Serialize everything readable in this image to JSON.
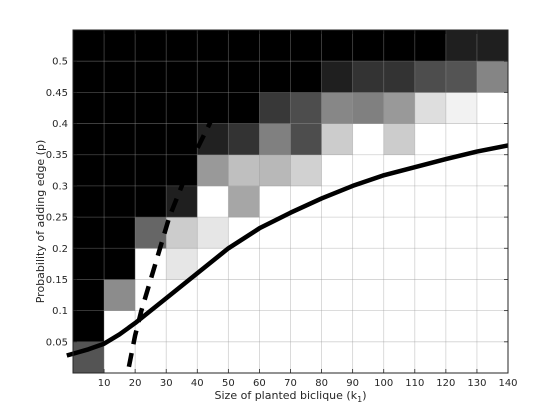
{
  "chart_data": {
    "type": "heatmap",
    "title": "",
    "xlabel": "Size of planted biclique (k",
    "xlabel_subscript": "1",
    "xlabel_suffix": ")",
    "ylabel": "Probability of adding edge (p)",
    "xlim": [
      0,
      140
    ],
    "ylim": [
      0,
      0.55
    ],
    "x_ticks": [
      10,
      20,
      30,
      40,
      50,
      60,
      70,
      80,
      90,
      100,
      110,
      120,
      130,
      140
    ],
    "x_tick_labels": [
      "10",
      "20",
      "30",
      "40",
      "50",
      "60",
      "70",
      "80",
      "90",
      "100",
      "110",
      "120",
      "130",
      "140"
    ],
    "y_ticks": [
      0.05,
      0.1,
      0.15,
      0.2,
      0.25,
      0.3,
      0.35,
      0.4,
      0.45,
      0.5
    ],
    "y_tick_labels": [
      "0.05",
      "0.1",
      "0.15",
      "0.2",
      "0.25",
      "0.3",
      "0.35",
      "0.4",
      "0.45",
      "0.5"
    ],
    "grid": true,
    "colormap": "gray (0 = black, 1 = white)",
    "x_cells": [
      5,
      15,
      25,
      35,
      45,
      55,
      65,
      75,
      85,
      95,
      105,
      115,
      125,
      135
    ],
    "y_cells": [
      0.025,
      0.075,
      0.125,
      0.175,
      0.225,
      0.275,
      0.325,
      0.375,
      0.425,
      0.475,
      0.525
    ],
    "cell_values": [
      [
        0.33,
        1,
        1,
        1,
        1,
        1,
        1,
        1,
        1,
        1,
        1,
        1,
        1,
        1
      ],
      [
        0,
        1,
        1,
        1,
        1,
        1,
        1,
        1,
        1,
        1,
        1,
        1,
        1,
        1
      ],
      [
        0,
        0.55,
        1,
        1,
        1,
        1,
        1,
        1,
        1,
        1,
        1,
        1,
        1,
        1
      ],
      [
        0,
        0,
        1,
        0.9,
        1,
        1,
        1,
        1,
        1,
        1,
        1,
        1,
        1,
        1
      ],
      [
        0,
        0,
        0.4,
        0.8,
        0.9,
        1,
        1,
        1,
        1,
        1,
        1,
        1,
        1,
        1
      ],
      [
        0,
        0,
        0,
        0.12,
        1,
        0.65,
        1,
        1,
        1,
        1,
        1,
        1,
        1,
        1
      ],
      [
        0,
        0,
        0,
        0,
        0.6,
        0.75,
        0.72,
        0.82,
        1,
        1,
        1,
        1,
        1,
        1
      ],
      [
        0,
        0,
        0,
        0,
        0.13,
        0.2,
        0.5,
        0.3,
        0.8,
        1,
        0.8,
        1,
        1,
        1
      ],
      [
        0,
        0,
        0,
        0,
        0,
        0,
        0.22,
        0.3,
        0.53,
        0.5,
        0.6,
        0.87,
        0.95,
        1
      ],
      [
        0,
        0,
        0,
        0,
        0,
        0,
        0,
        0,
        0.12,
        0.2,
        0.2,
        0.3,
        0.33,
        0.52
      ],
      [
        0,
        0,
        0,
        0,
        0,
        0,
        0,
        0,
        0,
        0,
        0,
        0,
        0.12,
        0.12
      ]
    ],
    "series": [
      {
        "style": "solid",
        "x": [
          -2,
          5,
          10,
          15,
          20,
          25,
          30,
          40,
          50,
          60,
          70,
          80,
          90,
          100,
          110,
          120,
          130,
          140
        ],
        "y": [
          0.028,
          0.038,
          0.047,
          0.062,
          0.08,
          0.1,
          0.12,
          0.16,
          0.2,
          0.232,
          0.257,
          0.28,
          0.3,
          0.317,
          0.33,
          0.343,
          0.355,
          0.365
        ]
      },
      {
        "style": "dashed",
        "x": [
          18,
          20,
          22,
          25,
          28,
          31,
          35,
          40,
          46
        ],
        "y": [
          0.01,
          0.06,
          0.1,
          0.15,
          0.2,
          0.25,
          0.3,
          0.36,
          0.42
        ]
      }
    ]
  }
}
